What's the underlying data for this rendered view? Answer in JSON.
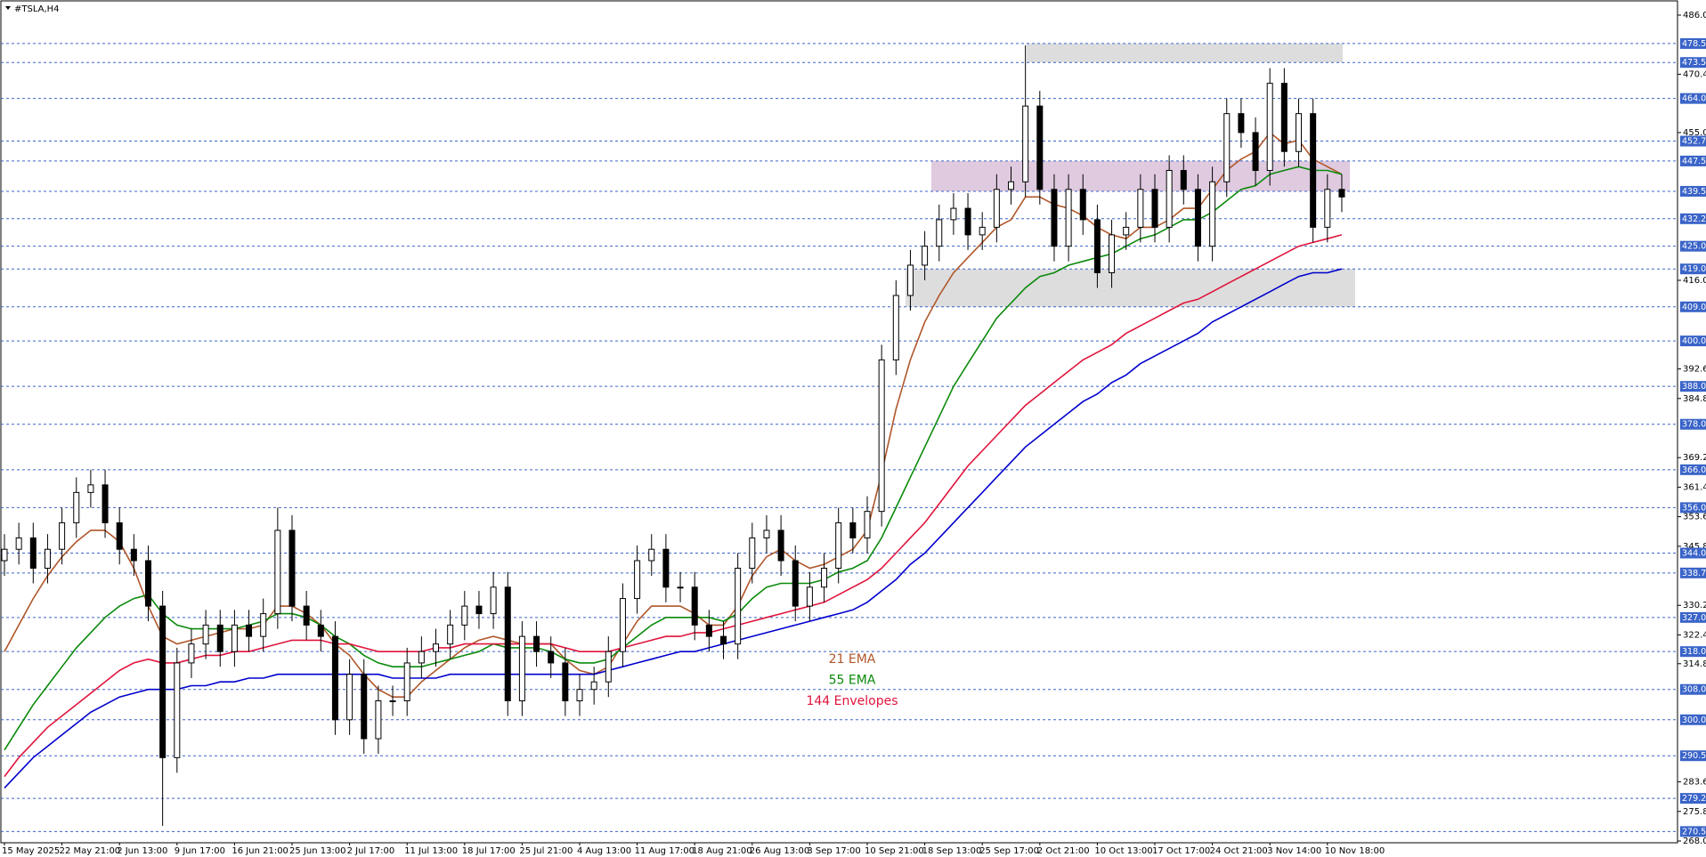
{
  "chart_data": {
    "type": "candlestick",
    "title": "#TSLA,H4",
    "categories": [
      "15 May 2025",
      null,
      null,
      null,
      "22 May 21:00",
      null,
      null,
      null,
      "2 Jun 13:00",
      null,
      null,
      null,
      "9 Jun 17:00",
      null,
      null,
      null,
      "16 Jun 21:00",
      null,
      null,
      null,
      "25 Jun 13:00",
      null,
      null,
      null,
      "2 Jul 17:00",
      null,
      null,
      null,
      "11 Jul 13:00",
      null,
      null,
      null,
      "18 Jul 17:00",
      null,
      null,
      null,
      "25 Jul 21:00",
      null,
      null,
      null,
      "4 Aug 13:00",
      null,
      null,
      null,
      "11 Aug 17:00",
      null,
      null,
      null,
      "18 Aug 21:00",
      null,
      null,
      null,
      "26 Aug 13:00",
      null,
      null,
      null,
      "3 Sep 17:00",
      null,
      null,
      null,
      "10 Sep 21:00",
      null,
      null,
      null,
      "18 Sep 13:00",
      null,
      null,
      null,
      "25 Sep 17:00",
      null,
      null,
      null,
      "2 Oct 21:00",
      null,
      null,
      null,
      "10 Oct 13:00",
      null,
      null,
      null,
      "17 Oct 17:00",
      null,
      null,
      null,
      "24 Oct 21:00",
      null,
      null,
      null,
      "3 Nov 14:00",
      null,
      null,
      null,
      "10 Nov 18:00",
      null
    ],
    "open": [
      342,
      345,
      348,
      340,
      345,
      352,
      360,
      362,
      352,
      345,
      342,
      330,
      290,
      315,
      320,
      325,
      318,
      325,
      322,
      328,
      350,
      330,
      325,
      322,
      300,
      312,
      295,
      305,
      305,
      315,
      318,
      320,
      325,
      330,
      328,
      335,
      305,
      322,
      318,
      315,
      305,
      308,
      310,
      318,
      332,
      342,
      345,
      335,
      335,
      325,
      322,
      320,
      340,
      348,
      350,
      342,
      330,
      335,
      340,
      352,
      348,
      355,
      395,
      412,
      420,
      425,
      432,
      435,
      428,
      430,
      440,
      442,
      462,
      440,
      425,
      440,
      432,
      418,
      428,
      430,
      440,
      430,
      445,
      440,
      425,
      442,
      460,
      455,
      445,
      468,
      450,
      460,
      430,
      440
    ],
    "high": [
      349,
      352,
      352,
      349,
      356,
      364,
      366,
      366,
      356,
      349,
      346,
      334,
      319,
      324,
      329,
      329,
      329,
      329,
      332,
      356,
      354,
      334,
      329,
      326,
      316,
      316,
      309,
      309,
      319,
      322,
      324,
      329,
      334,
      334,
      339,
      339,
      326,
      326,
      322,
      319,
      312,
      314,
      322,
      336,
      346,
      349,
      349,
      339,
      339,
      329,
      326,
      344,
      352,
      354,
      354,
      346,
      339,
      344,
      356,
      356,
      359,
      399,
      416,
      424,
      429,
      436,
      439,
      439,
      434,
      444,
      446,
      478,
      466,
      444,
      444,
      444,
      436,
      432,
      434,
      444,
      444,
      449,
      449,
      444,
      446,
      464,
      464,
      459,
      472,
      472,
      464,
      464,
      444,
      444
    ],
    "low": [
      338,
      341,
      336,
      336,
      341,
      348,
      356,
      348,
      341,
      338,
      326,
      272,
      286,
      311,
      316,
      314,
      314,
      318,
      318,
      324,
      326,
      321,
      318,
      296,
      296,
      291,
      291,
      301,
      301,
      311,
      314,
      316,
      321,
      324,
      324,
      301,
      301,
      314,
      311,
      301,
      301,
      304,
      306,
      314,
      328,
      338,
      331,
      331,
      321,
      318,
      316,
      316,
      336,
      344,
      338,
      326,
      326,
      331,
      336,
      344,
      344,
      351,
      391,
      408,
      416,
      421,
      428,
      424,
      424,
      426,
      436,
      438,
      436,
      421,
      421,
      428,
      414,
      414,
      424,
      426,
      426,
      426,
      436,
      421,
      421,
      438,
      451,
      441,
      441,
      446,
      446,
      426,
      426,
      434
    ],
    "close": [
      345,
      348,
      340,
      345,
      352,
      360,
      362,
      352,
      345,
      342,
      330,
      290,
      315,
      320,
      325,
      318,
      325,
      322,
      328,
      350,
      330,
      325,
      322,
      300,
      312,
      295,
      305,
      305,
      315,
      318,
      320,
      325,
      330,
      328,
      335,
      305,
      322,
      318,
      315,
      305,
      308,
      310,
      318,
      332,
      342,
      345,
      335,
      335,
      325,
      322,
      320,
      340,
      348,
      350,
      342,
      330,
      335,
      340,
      352,
      348,
      355,
      395,
      412,
      420,
      425,
      432,
      435,
      428,
      430,
      440,
      442,
      462,
      440,
      425,
      440,
      432,
      418,
      428,
      430,
      440,
      430,
      445,
      440,
      425,
      442,
      460,
      455,
      445,
      468,
      450,
      460,
      430,
      440,
      438
    ],
    "series": [
      {
        "name": "21 EMA",
        "color": "#b0562a",
        "values": [
          318,
          325,
          332,
          338,
          343,
          347,
          350,
          350,
          347,
          340,
          330,
          322,
          320,
          321,
          322,
          323,
          324,
          324,
          325,
          330,
          330,
          328,
          325,
          320,
          317,
          312,
          308,
          306,
          306,
          310,
          313,
          316,
          319,
          321,
          322,
          321,
          320,
          320,
          320,
          316,
          313,
          312,
          314,
          320,
          326,
          330,
          330,
          330,
          328,
          325,
          325,
          330,
          338,
          343,
          345,
          342,
          340,
          341,
          343,
          345,
          350,
          365,
          382,
          395,
          405,
          412,
          418,
          422,
          426,
          430,
          432,
          438,
          438,
          436,
          435,
          433,
          430,
          428,
          427,
          430,
          430,
          432,
          435,
          435,
          440,
          445,
          448,
          450,
          455,
          452,
          453,
          448,
          446,
          444
        ]
      },
      {
        "name": "55 EMA",
        "color": "#0a8a0a",
        "values": [
          292,
          298,
          304,
          309,
          314,
          319,
          323,
          327,
          330,
          332,
          333,
          328,
          325,
          324,
          324,
          324,
          324,
          325,
          326,
          328,
          328,
          327,
          325,
          322,
          320,
          317,
          315,
          314,
          314,
          314,
          315,
          316,
          317,
          318,
          320,
          319,
          319,
          319,
          318,
          316,
          315,
          315,
          316,
          319,
          322,
          325,
          327,
          327,
          327,
          327,
          326,
          328,
          332,
          335,
          336,
          336,
          336,
          337,
          339,
          340,
          342,
          348,
          356,
          364,
          372,
          380,
          388,
          394,
          400,
          406,
          410,
          414,
          417,
          418,
          420,
          421,
          422,
          423,
          425,
          427,
          428,
          430,
          432,
          432,
          434,
          437,
          440,
          441,
          444,
          445,
          446,
          445,
          445,
          444
        ]
      },
      {
        "name": "144 Envelopes",
        "color": "#e0143c",
        "values": [
          285,
          290,
          294,
          298,
          301,
          304,
          307,
          310,
          313,
          315,
          316,
          315,
          315,
          316,
          317,
          317,
          318,
          318,
          319,
          320,
          321,
          321,
          321,
          320,
          320,
          319,
          318,
          318,
          318,
          318,
          319,
          319,
          320,
          320,
          320,
          320,
          320,
          320,
          320,
          319,
          318,
          318,
          318,
          319,
          320,
          321,
          322,
          322,
          323,
          323,
          324,
          325,
          326,
          327,
          328,
          329,
          330,
          331,
          333,
          335,
          337,
          340,
          344,
          348,
          352,
          357,
          362,
          367,
          371,
          375,
          379,
          383,
          386,
          389,
          392,
          395,
          397,
          399,
          402,
          404,
          406,
          408,
          410,
          411,
          413,
          415,
          417,
          419,
          421,
          423,
          425,
          426,
          427,
          428
        ]
      },
      {
        "color": "#0000cd",
        "values": [
          282,
          286,
          290,
          293,
          296,
          299,
          302,
          304,
          306,
          307,
          308,
          308,
          308,
          309,
          309,
          310,
          310,
          311,
          311,
          312,
          312,
          312,
          312,
          312,
          312,
          312,
          312,
          311,
          311,
          311,
          311,
          312,
          312,
          312,
          312,
          312,
          312,
          312,
          312,
          312,
          312,
          312,
          313,
          314,
          315,
          316,
          317,
          318,
          318,
          319,
          320,
          321,
          322,
          323,
          324,
          325,
          326,
          327,
          328,
          329,
          331,
          334,
          337,
          341,
          344,
          348,
          352,
          356,
          360,
          364,
          368,
          372,
          375,
          378,
          381,
          384,
          386,
          389,
          391,
          394,
          396,
          398,
          400,
          402,
          405,
          407,
          409,
          411,
          413,
          415,
          417,
          418,
          418,
          419
        ]
      }
    ],
    "ylim": [
      268,
      486
    ],
    "yticks": [
      {
        "value": 486,
        "label": "486.00"
      },
      {
        "value": 470.4,
        "label": "470.40"
      },
      {
        "value": 455,
        "label": "455.00"
      },
      {
        "value": 416,
        "label": "416.00"
      },
      {
        "value": 392.6,
        "label": "392.60"
      },
      {
        "value": 384.8,
        "label": "384.80"
      },
      {
        "value": 369.2,
        "label": "369.20"
      },
      {
        "value": 361.4,
        "label": "361.40"
      },
      {
        "value": 353.6,
        "label": "353.60"
      },
      {
        "value": 345.8,
        "label": "345.80"
      },
      {
        "value": 330.2,
        "label": "330.20"
      },
      {
        "value": 322.4,
        "label": "322.40"
      },
      {
        "value": 314.8,
        "label": "314.80"
      },
      {
        "value": 283.6,
        "label": "283.60"
      },
      {
        "value": 275.8,
        "label": "275.80"
      },
      {
        "value": 268,
        "label": "268.00"
      }
    ],
    "levels": [
      {
        "value": 478.5,
        "label": "478.50"
      },
      {
        "value": 473.5,
        "label": "473.50"
      },
      {
        "value": 464,
        "label": "464.00"
      },
      {
        "value": 452.75,
        "label": "452.75"
      },
      {
        "value": 447.5,
        "label": "447.50"
      },
      {
        "value": 439.5,
        "label": "439.50"
      },
      {
        "value": 432.25,
        "label": "432.25"
      },
      {
        "value": 425,
        "label": "425.00"
      },
      {
        "value": 419,
        "label": "419.00"
      },
      {
        "value": 409,
        "label": "409.00"
      },
      {
        "value": 400,
        "label": "400.00"
      },
      {
        "value": 388,
        "label": "388.00"
      },
      {
        "value": 378,
        "label": "378.00"
      },
      {
        "value": 366,
        "label": "366.00"
      },
      {
        "value": 356,
        "label": "356.00"
      },
      {
        "value": 344,
        "label": "344.00"
      },
      {
        "value": 338.75,
        "label": "338.75"
      },
      {
        "value": 327,
        "label": "327.00"
      },
      {
        "value": 318,
        "label": "318.00"
      },
      {
        "value": 308,
        "label": "308.00"
      },
      {
        "value": 300,
        "label": "300.00"
      },
      {
        "value": 290.5,
        "label": "290.50"
      },
      {
        "value": 279.25,
        "label": "279.25"
      },
      {
        "value": 270.5,
        "label": "270.50"
      }
    ],
    "level_color": "#3a64c8",
    "zones": [
      {
        "low": 473.5,
        "high": 478.5,
        "color": "#d9d9d9"
      },
      {
        "low": 439.5,
        "high": 447.5,
        "color": "#dcc4dc"
      },
      {
        "low": 409,
        "high": 419,
        "color": "#d9d9d9"
      }
    ]
  }
}
